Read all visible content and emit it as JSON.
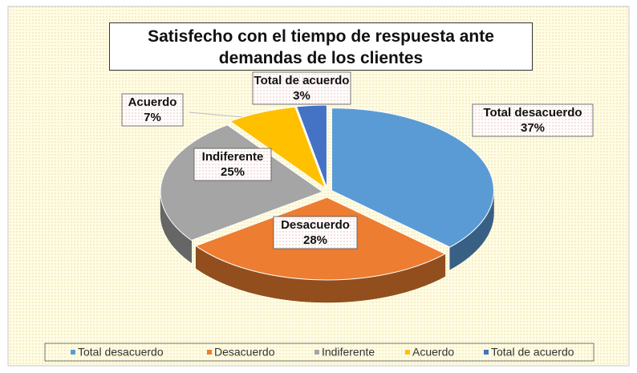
{
  "chart_data": {
    "type": "pie",
    "title": "Satisfecho con el tiempo de respuesta ante demandas de los clientes",
    "categories": [
      "Total desacuerdo",
      "Desacuerdo",
      "Indiferente",
      "Acuerdo",
      "Total de acuerdo"
    ],
    "values": [
      37,
      28,
      25,
      7,
      3
    ],
    "value_labels": [
      "37%",
      "28%",
      "25%",
      "7%",
      "3%"
    ],
    "colors": [
      "#5b9bd5",
      "#ed7d31",
      "#a5a5a5",
      "#ffc000",
      "#4472c4"
    ],
    "legend": "bottom"
  }
}
